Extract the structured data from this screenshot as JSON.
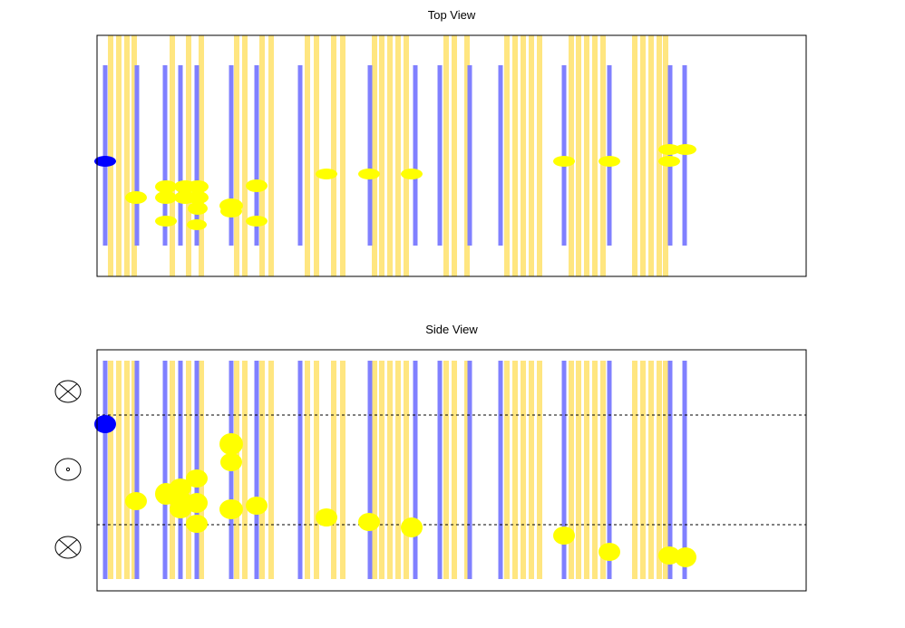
{
  "colors": {
    "blue_bar": "#8080ff",
    "yellow_bar": "#ffe680",
    "hit": "#ffff00",
    "source": "#0000ff",
    "frame": "#000000"
  },
  "top_view": {
    "title": "Top View"
  },
  "side_view": {
    "title": "Side View",
    "direction_symbols": [
      {
        "icon": "into-page-icon"
      },
      {
        "icon": "out-of-page-icon"
      },
      {
        "icon": "into-page-icon"
      }
    ]
  }
}
